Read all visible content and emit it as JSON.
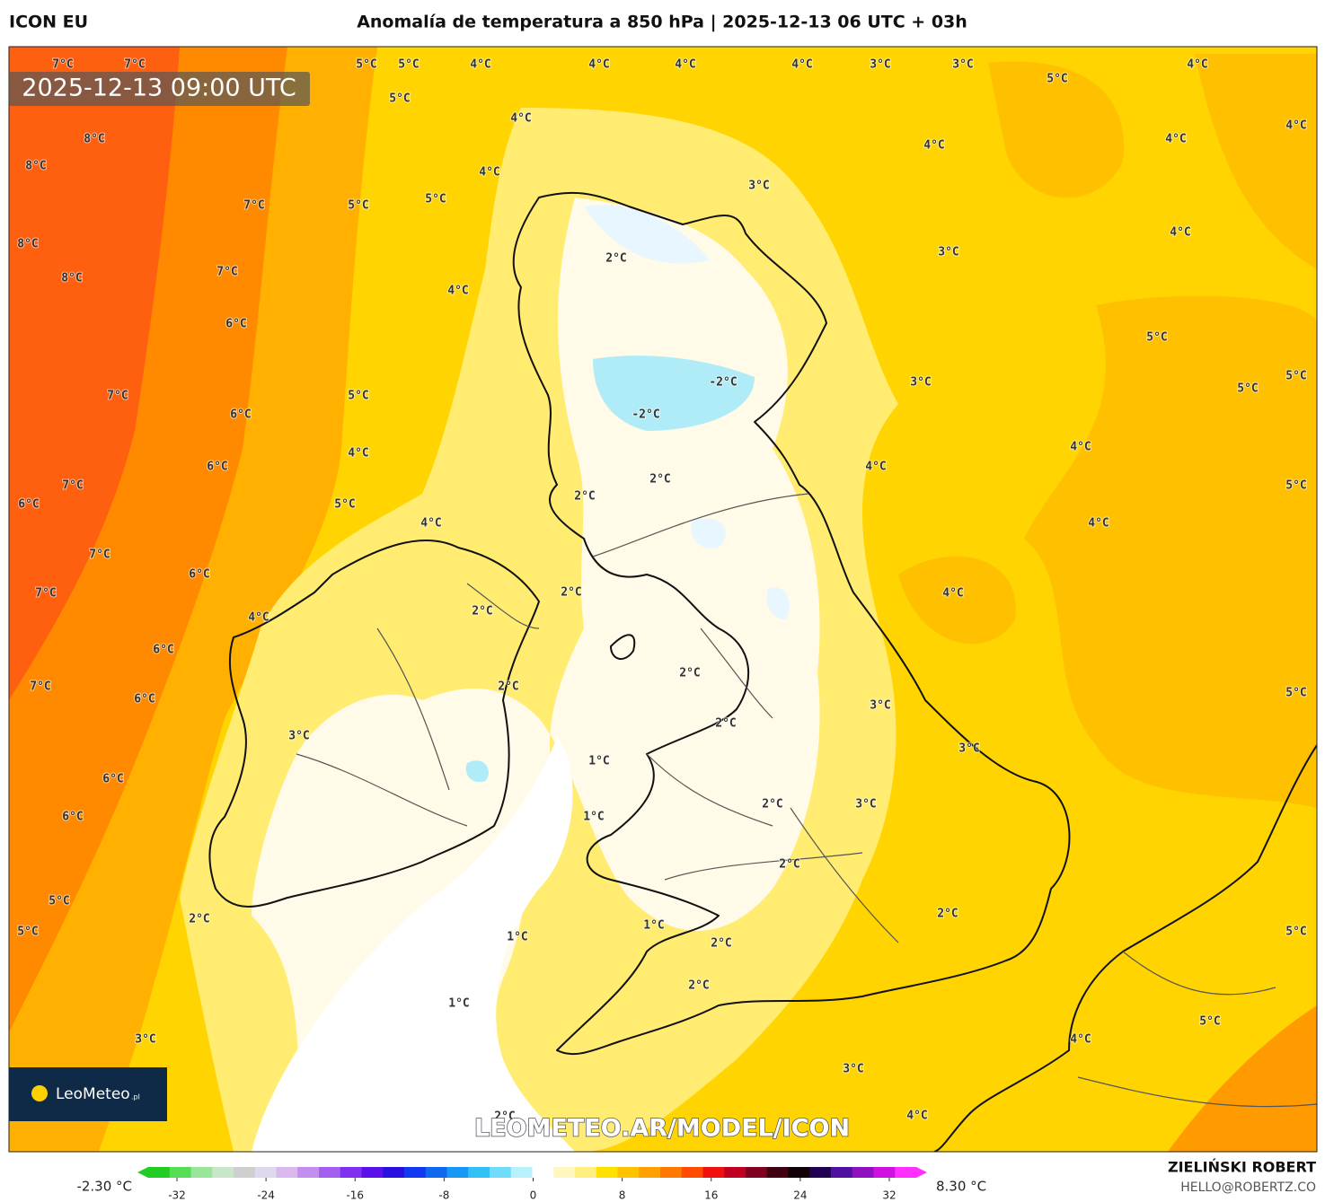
{
  "header": {
    "model": "ICON EU",
    "title": "Anomalía de temperatura a 850 hPa | 2025-12-13 06 UTC + 03h"
  },
  "map": {
    "valid_time": "2025-12-13 09:00 UTC",
    "watermark": "LEOMETEO.AR/MODEL/ICON",
    "logo": "LeoMeteo",
    "logo_suffix": ".pl",
    "contour_labels": [
      "7°C",
      "7°C",
      "5°C",
      "5°C",
      "4°C",
      "4°C",
      "4°C",
      "4°C",
      "3°C",
      "3°C",
      "4°C",
      "5°C",
      "5°C",
      "4°C",
      "4°C",
      "8°C",
      "4°C",
      "4°C",
      "8°C",
      "4°C",
      "3°C",
      "5°C",
      "7°C",
      "5°C",
      "4°C",
      "8°C",
      "3°C",
      "2°C",
      "7°C",
      "8°C",
      "4°C",
      "6°C",
      "5°C",
      "5°C",
      "3°C",
      "-2°C",
      "5°C",
      "7°C",
      "5°C",
      "-2°C",
      "6°C",
      "4°C",
      "4°C",
      "6°C",
      "4°C",
      "2°C",
      "7°C",
      "5°C",
      "2°C",
      "6°C",
      "5°C",
      "4°C",
      "4°C",
      "7°C",
      "6°C",
      "2°C",
      "4°C",
      "7°C",
      "2°C",
      "4°C",
      "6°C",
      "2°C",
      "7°C",
      "2°C",
      "5°C",
      "6°C",
      "3°C",
      "2°C",
      "3°C",
      "3°C",
      "1°C",
      "6°C",
      "2°C",
      "3°C",
      "6°C",
      "1°C",
      "2°C",
      "5°C",
      "2°C",
      "2°C",
      "1°C",
      "5°C",
      "5°C",
      "1°C",
      "2°C",
      "2°C",
      "1°C",
      "5°C",
      "3°C",
      "4°C",
      "3°C",
      "2°C",
      "4°C"
    ]
  },
  "colorbar": {
    "min_label": "-2.30 °C",
    "max_label": "8.30 °C",
    "ticks": [
      -32,
      -24,
      -16,
      -8,
      0,
      8,
      16,
      24,
      32
    ],
    "colors": [
      "#22cc22",
      "#55dd55",
      "#99e699",
      "#c8e6c8",
      "#cfcfcf",
      "#e0d8ef",
      "#d9b8f0",
      "#c38ef0",
      "#a35ff0",
      "#8030f0",
      "#5a10e8",
      "#2a10e0",
      "#1038f0",
      "#1068f0",
      "#1898f5",
      "#30c0f8",
      "#70dcfc",
      "#b8f0fc",
      "#ffffff",
      "#fff6c0",
      "#ffee80",
      "#ffe100",
      "#ffc200",
      "#ffa000",
      "#ff7800",
      "#ff4a00",
      "#f01010",
      "#c00020",
      "#800020",
      "#400010",
      "#100008",
      "#200050",
      "#5010a0",
      "#9010c0",
      "#d010e0",
      "#ff30ff"
    ]
  },
  "footer": {
    "author": "ZIELIŃSKI ROBERT",
    "email": "HELLO@ROBERTZ.CO"
  }
}
